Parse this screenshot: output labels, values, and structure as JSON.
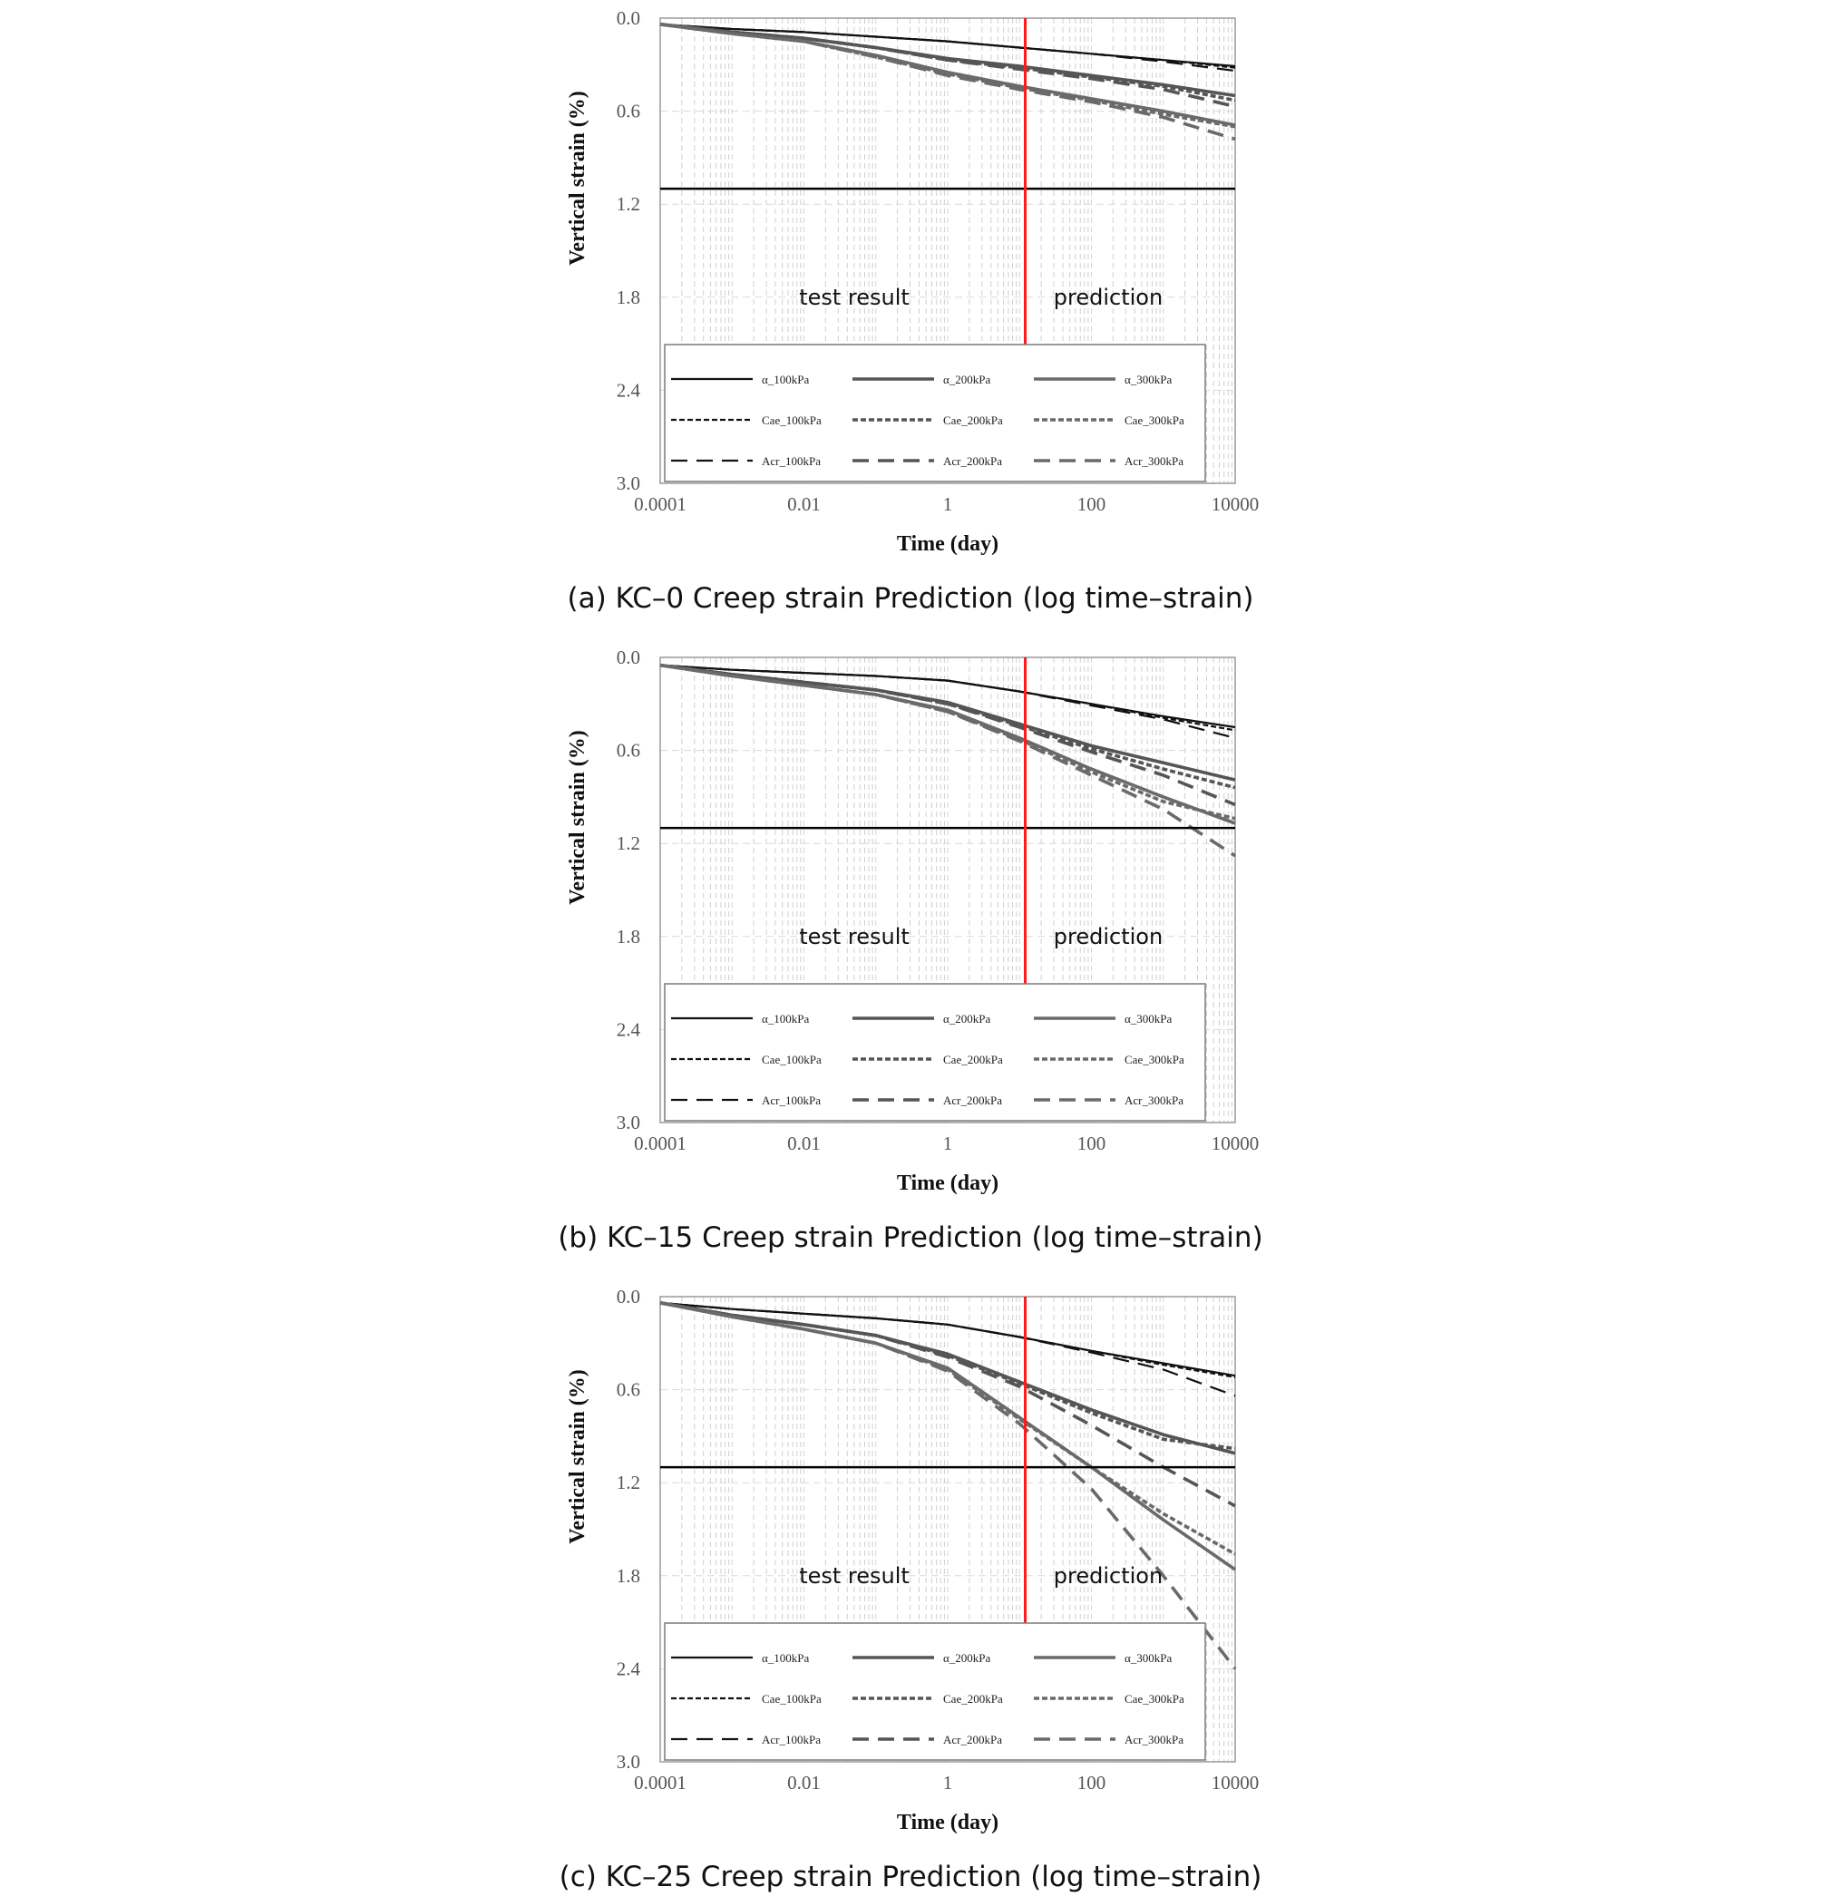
{
  "chart_data": [
    {
      "type": "line",
      "caption": "(a) KC–0 Creep strain Prediction (log time–strain)",
      "xlabel": "Time (day)",
      "ylabel": "Vertical strain (%)",
      "x_scale": "log",
      "xlim": [
        0.0001,
        10000
      ],
      "ylim": [
        0,
        3.0
      ],
      "y_inverted": true,
      "x_ticks": [
        "0.0001",
        "0.01",
        "1",
        "100",
        "10000"
      ],
      "y_ticks": [
        "0.0",
        "0.6",
        "1.2",
        "1.8",
        "2.4",
        "3.0"
      ],
      "threshold_line": 1.1,
      "divider_day": 12,
      "region_labels": {
        "left": "test result",
        "right": "prediction"
      },
      "grid": true,
      "legend_position": "bottom",
      "x": [
        0.0001,
        0.001,
        0.01,
        0.1,
        1,
        10,
        100,
        1000,
        10000
      ],
      "series": [
        {
          "name": "α_100kPa",
          "values": [
            0.04,
            0.07,
            0.09,
            0.12,
            0.15,
            0.19,
            0.23,
            0.27,
            0.31
          ]
        },
        {
          "name": "Cae_100kPa",
          "values": [
            0.04,
            0.07,
            0.09,
            0.12,
            0.15,
            0.19,
            0.23,
            0.27,
            0.32
          ]
        },
        {
          "name": "Acr_100kPa",
          "values": [
            0.04,
            0.07,
            0.09,
            0.12,
            0.15,
            0.19,
            0.23,
            0.28,
            0.34
          ]
        },
        {
          "name": "α_200kPa",
          "values": [
            0.04,
            0.09,
            0.13,
            0.19,
            0.26,
            0.31,
            0.37,
            0.43,
            0.5
          ]
        },
        {
          "name": "Cae_200kPa",
          "values": [
            0.04,
            0.09,
            0.13,
            0.19,
            0.27,
            0.32,
            0.38,
            0.44,
            0.53
          ]
        },
        {
          "name": "Acr_200kPa",
          "values": [
            0.04,
            0.09,
            0.13,
            0.19,
            0.27,
            0.33,
            0.39,
            0.46,
            0.57
          ]
        },
        {
          "name": "α_300kPa",
          "values": [
            0.04,
            0.1,
            0.15,
            0.24,
            0.35,
            0.44,
            0.52,
            0.6,
            0.69
          ]
        },
        {
          "name": "Cae_300kPa",
          "values": [
            0.04,
            0.1,
            0.15,
            0.25,
            0.36,
            0.45,
            0.53,
            0.62,
            0.7
          ]
        },
        {
          "name": "Acr_300kPa",
          "values": [
            0.04,
            0.1,
            0.15,
            0.25,
            0.37,
            0.46,
            0.54,
            0.64,
            0.78
          ]
        }
      ]
    },
    {
      "type": "line",
      "caption": "(b) KC–15 Creep strain Prediction (log time–strain)",
      "xlabel": "Time (day)",
      "ylabel": "Vertical strain (%)",
      "x_scale": "log",
      "xlim": [
        0.0001,
        10000
      ],
      "ylim": [
        0,
        3.0
      ],
      "y_inverted": true,
      "x_ticks": [
        "0.0001",
        "0.01",
        "1",
        "100",
        "10000"
      ],
      "y_ticks": [
        "0.0",
        "0.6",
        "1.2",
        "1.8",
        "2.4",
        "3.0"
      ],
      "threshold_line": 1.1,
      "divider_day": 12,
      "region_labels": {
        "left": "test result",
        "right": "prediction"
      },
      "grid": true,
      "legend_position": "bottom",
      "x": [
        0.0001,
        0.001,
        0.01,
        0.1,
        1,
        10,
        100,
        1000,
        10000
      ],
      "series": [
        {
          "name": "α_100kPa",
          "values": [
            0.05,
            0.08,
            0.1,
            0.12,
            0.15,
            0.22,
            0.3,
            0.38,
            0.45
          ]
        },
        {
          "name": "Cae_100kPa",
          "values": [
            0.05,
            0.08,
            0.1,
            0.12,
            0.15,
            0.22,
            0.3,
            0.39,
            0.47
          ]
        },
        {
          "name": "Acr_100kPa",
          "values": [
            0.05,
            0.08,
            0.1,
            0.12,
            0.15,
            0.22,
            0.31,
            0.4,
            0.52
          ]
        },
        {
          "name": "α_200kPa",
          "values": [
            0.05,
            0.11,
            0.16,
            0.21,
            0.29,
            0.43,
            0.57,
            0.68,
            0.79
          ]
        },
        {
          "name": "Cae_200kPa",
          "values": [
            0.05,
            0.11,
            0.16,
            0.21,
            0.3,
            0.44,
            0.59,
            0.72,
            0.84
          ]
        },
        {
          "name": "Acr_200kPa",
          "values": [
            0.05,
            0.11,
            0.16,
            0.21,
            0.3,
            0.45,
            0.61,
            0.76,
            0.95
          ]
        },
        {
          "name": "α_300kPa",
          "values": [
            0.05,
            0.12,
            0.18,
            0.24,
            0.34,
            0.52,
            0.72,
            0.9,
            1.07
          ]
        },
        {
          "name": "Cae_300kPa",
          "values": [
            0.05,
            0.12,
            0.18,
            0.24,
            0.35,
            0.53,
            0.74,
            0.93,
            1.04
          ]
        },
        {
          "name": "Acr_300kPa",
          "values": [
            0.05,
            0.12,
            0.18,
            0.24,
            0.35,
            0.54,
            0.76,
            0.98,
            1.28
          ]
        }
      ]
    },
    {
      "type": "line",
      "caption": "(c) KC–25 Creep strain Prediction (log time–strain)",
      "xlabel": "Time (day)",
      "ylabel": "Vertical strain (%)",
      "x_scale": "log",
      "xlim": [
        0.0001,
        10000
      ],
      "ylim": [
        0,
        3.0
      ],
      "y_inverted": true,
      "x_ticks": [
        "0.0001",
        "0.01",
        "1",
        "100",
        "10000"
      ],
      "y_ticks": [
        "0.0",
        "0.6",
        "1.2",
        "1.8",
        "2.4",
        "3.0"
      ],
      "threshold_line": 1.1,
      "divider_day": 12,
      "region_labels": {
        "left": "test result",
        "right": "prediction"
      },
      "grid": true,
      "legend_position": "bottom",
      "x": [
        0.0001,
        0.001,
        0.01,
        0.1,
        1,
        10,
        100,
        1000,
        10000
      ],
      "series": [
        {
          "name": "α_100kPa",
          "values": [
            0.04,
            0.08,
            0.11,
            0.14,
            0.18,
            0.26,
            0.35,
            0.43,
            0.51
          ]
        },
        {
          "name": "Cae_100kPa",
          "values": [
            0.04,
            0.08,
            0.11,
            0.14,
            0.18,
            0.26,
            0.35,
            0.44,
            0.52
          ]
        },
        {
          "name": "Acr_100kPa",
          "values": [
            0.04,
            0.08,
            0.11,
            0.14,
            0.18,
            0.26,
            0.36,
            0.47,
            0.64
          ]
        },
        {
          "name": "α_200kPa",
          "values": [
            0.04,
            0.12,
            0.18,
            0.25,
            0.37,
            0.55,
            0.73,
            0.89,
            1.01
          ]
        },
        {
          "name": "Cae_200kPa",
          "values": [
            0.04,
            0.12,
            0.18,
            0.25,
            0.38,
            0.56,
            0.75,
            0.92,
            0.98
          ]
        },
        {
          "name": "Acr_200kPa",
          "values": [
            0.04,
            0.12,
            0.18,
            0.25,
            0.39,
            0.58,
            0.83,
            1.1,
            1.35
          ]
        },
        {
          "name": "α_300kPa",
          "values": [
            0.04,
            0.13,
            0.21,
            0.3,
            0.46,
            0.78,
            1.1,
            1.44,
            1.76
          ]
        },
        {
          "name": "Cae_300kPa",
          "values": [
            0.04,
            0.13,
            0.21,
            0.3,
            0.47,
            0.79,
            1.1,
            1.4,
            1.66
          ]
        },
        {
          "name": "Acr_300kPa",
          "values": [
            0.04,
            0.13,
            0.21,
            0.3,
            0.48,
            0.82,
            1.24,
            1.8,
            2.4
          ]
        }
      ]
    }
  ],
  "legend_style": {
    "colors": {
      "100kPa": "#111111",
      "200kPa": "#555555",
      "300kPa": "#6a6a6a"
    },
    "divider_color": "#ff1a1a"
  }
}
